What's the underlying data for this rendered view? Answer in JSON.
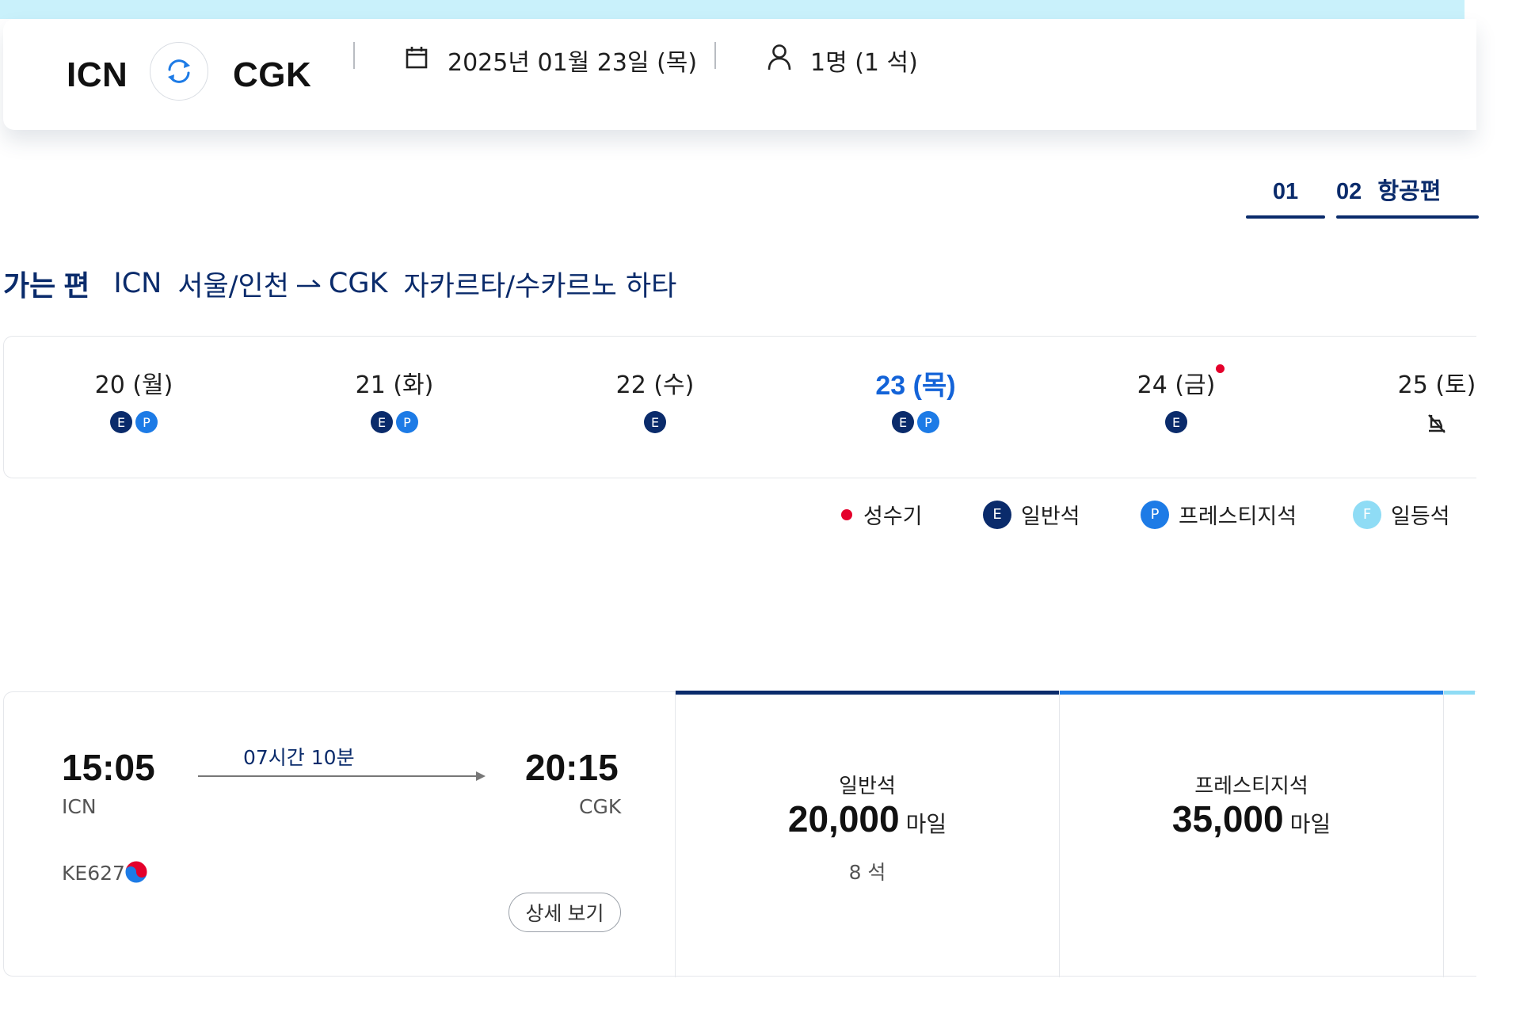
{
  "search": {
    "origin": "ICN",
    "destination": "CGK",
    "date": "2025년 01월 23일 (목)",
    "passengers": "1명 (1 석)"
  },
  "steps": [
    {
      "num": "01",
      "label": ""
    },
    {
      "num": "02",
      "label": "항공편"
    }
  ],
  "route": {
    "label": "가는 편",
    "origin_code": "ICN",
    "origin_city": "서울/인천",
    "dest_code": "CGK",
    "dest_city": "자카르타/수카르노 하타"
  },
  "dates": [
    {
      "label": "20 (월)",
      "badges": [
        "E",
        "P"
      ],
      "peak": false,
      "selected": false
    },
    {
      "label": "21 (화)",
      "badges": [
        "E",
        "P"
      ],
      "peak": false,
      "selected": false
    },
    {
      "label": "22 (수)",
      "badges": [
        "E"
      ],
      "peak": false,
      "selected": false
    },
    {
      "label": "23 (목)",
      "badges": [
        "E",
        "P"
      ],
      "peak": false,
      "selected": true
    },
    {
      "label": "24 (금)",
      "badges": [
        "E"
      ],
      "peak": true,
      "selected": false
    },
    {
      "label": "25 (토)",
      "badges": [],
      "peak": false,
      "selected": false,
      "unavailable": true
    }
  ],
  "legend": {
    "peak": "성수기",
    "economy_badge": "E",
    "economy": "일반석",
    "prestige_badge": "P",
    "prestige": "프레스티지석",
    "first_badge": "F",
    "first": "일등석"
  },
  "flight": {
    "dep_time": "15:05",
    "dep_code": "ICN",
    "duration": "07시간 10분",
    "arr_time": "20:15",
    "arr_code": "CGK",
    "flight_number": "KE627",
    "detail_button": "상세 보기",
    "fares": [
      {
        "cabin": "일반석",
        "miles": "20,000",
        "unit": "마일",
        "seats": "8 석",
        "accent": "#0a2b6b"
      },
      {
        "cabin": "프레스티지석",
        "miles": "35,000",
        "unit": "마일",
        "seats": "",
        "accent": "#1d7be6"
      }
    ]
  },
  "colors": {
    "navy": "#0a2b6b",
    "blue": "#1363d8",
    "prestige": "#1d7be6",
    "first": "#8fdcf5",
    "peak": "#e4002b",
    "top_band": "#c9f1fb"
  }
}
